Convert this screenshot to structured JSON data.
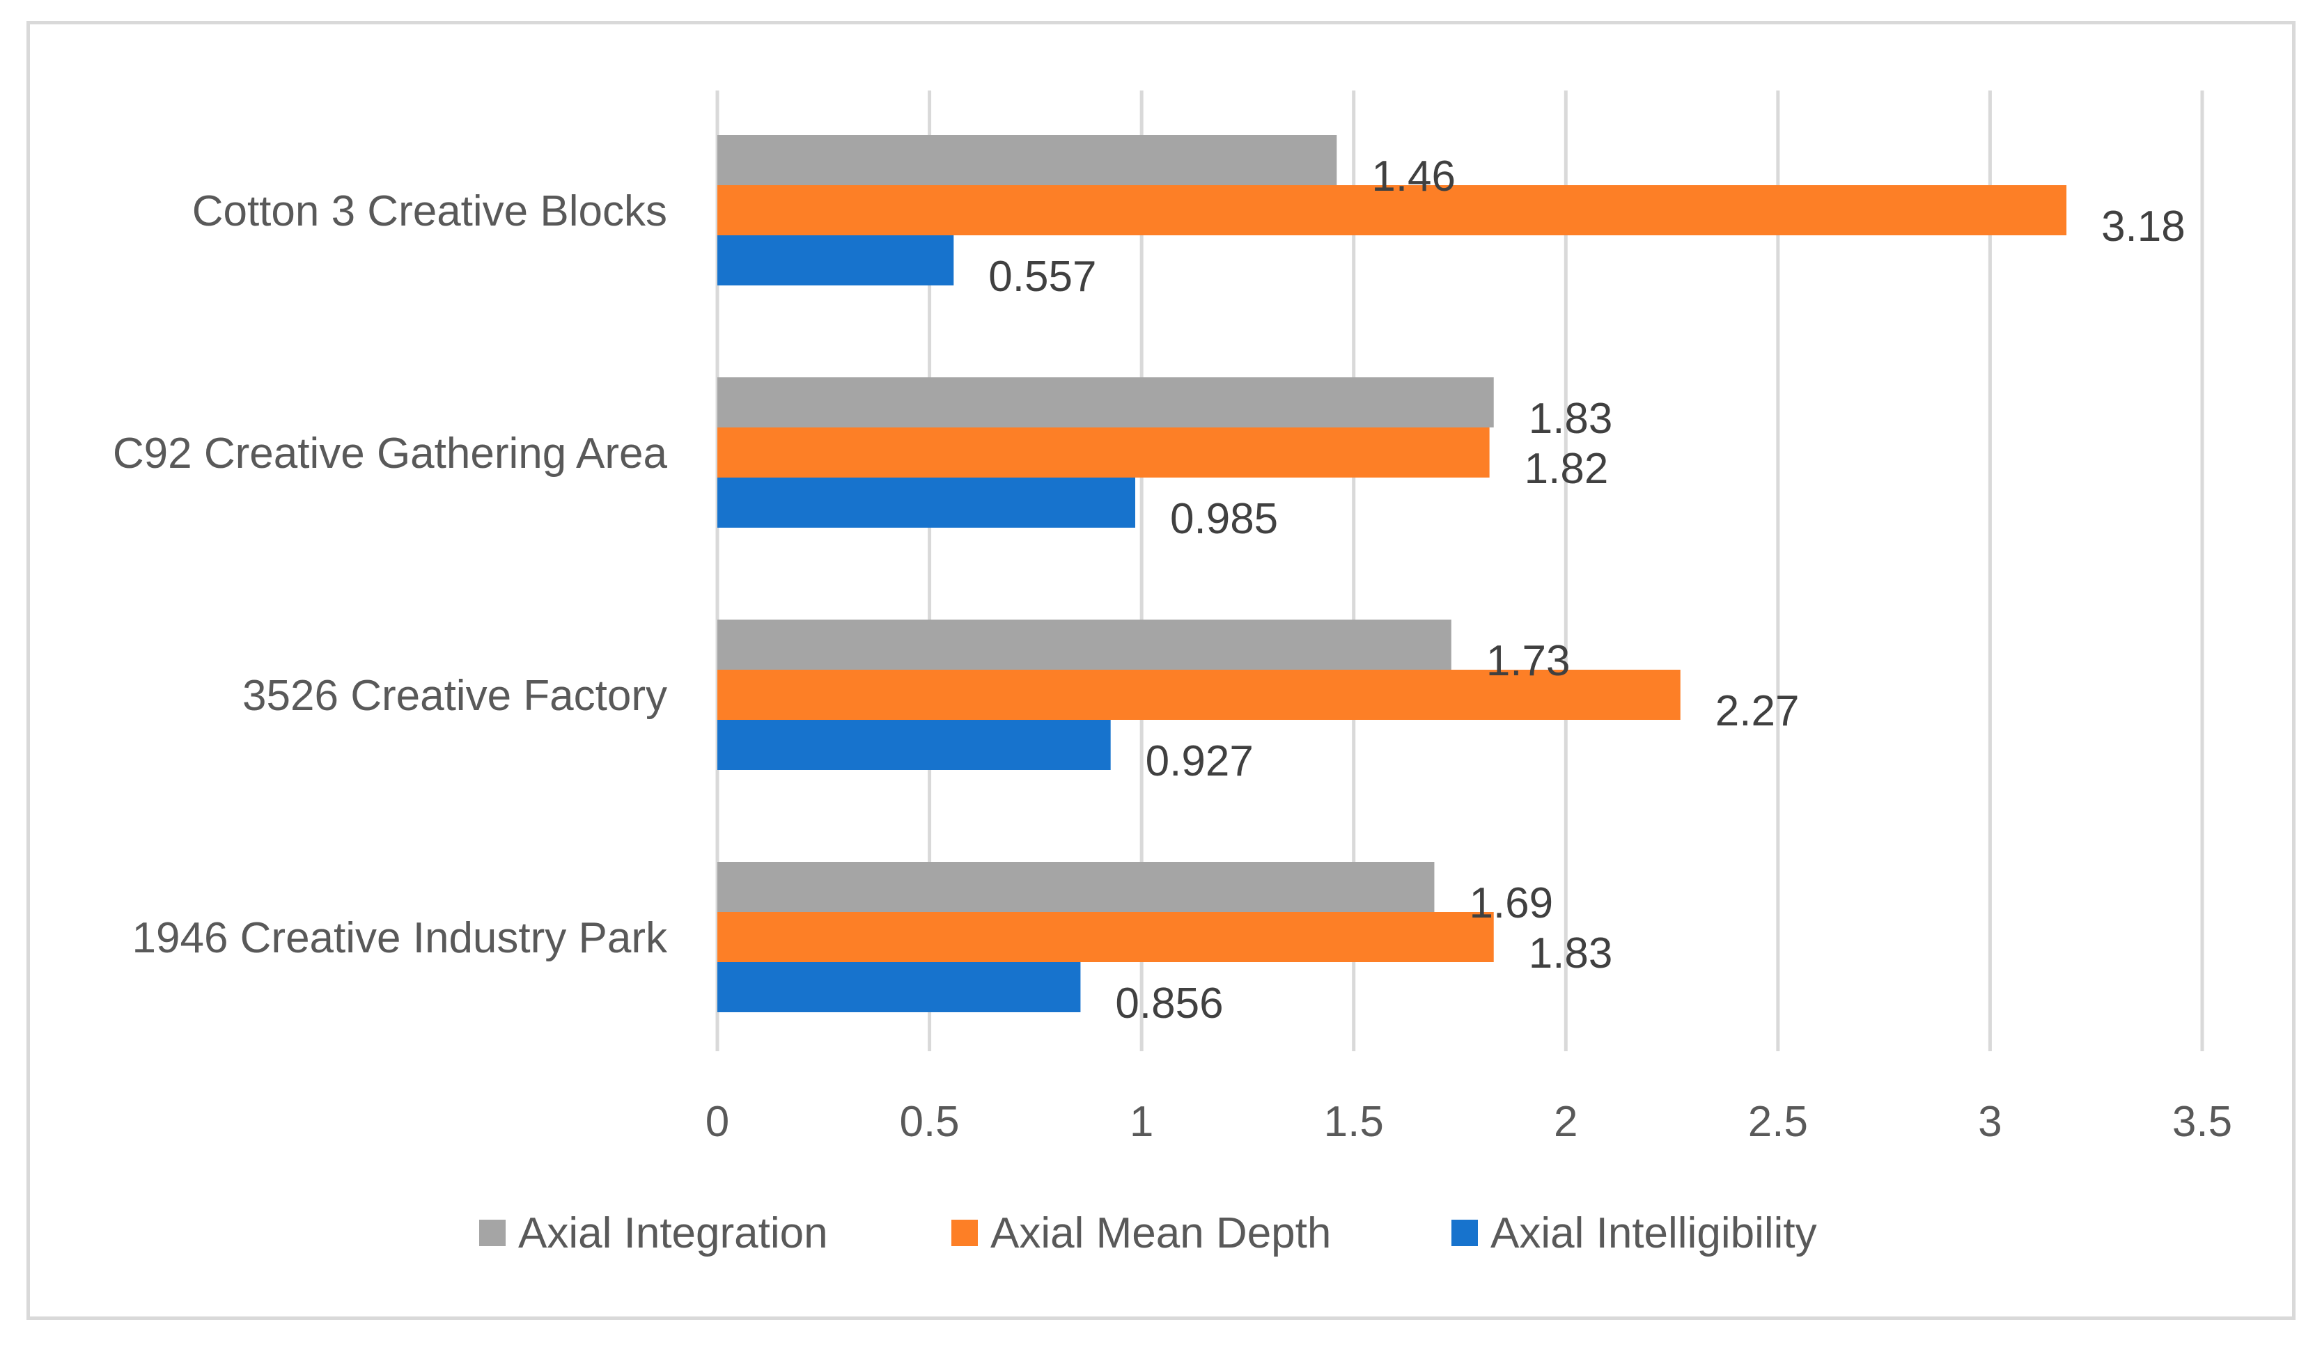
{
  "chart_data": {
    "type": "bar",
    "orientation": "horizontal",
    "title": "",
    "xlabel": "",
    "ylabel": "",
    "categories": [
      "1946 Creative Industry Park",
      "3526 Creative Factory",
      "C92 Creative Gathering Area",
      "Cotton 3 Creative Blocks"
    ],
    "series": [
      {
        "name": "Axial Integration",
        "color": "#a5a5a5",
        "values": [
          1.69,
          1.73,
          1.83,
          1.46
        ],
        "labels": [
          "1.69",
          "1.73",
          "1.83",
          "1.46"
        ]
      },
      {
        "name": "Axial Mean Depth",
        "color": "#fd7f26",
        "values": [
          1.83,
          2.27,
          1.82,
          3.18
        ],
        "labels": [
          "1.83",
          "2.27",
          "1.82",
          "3.18"
        ]
      },
      {
        "name": "Axial Intelligibility",
        "color": "#1773cd",
        "values": [
          0.856,
          0.927,
          0.985,
          0.557
        ],
        "labels": [
          "0.856",
          "0.927",
          "0.985",
          "0.557"
        ]
      }
    ],
    "xlim": [
      0,
      3.5
    ],
    "xticks": [
      "0",
      "0.5",
      "1",
      "1.5",
      "2",
      "2.5",
      "3",
      "3.5"
    ],
    "grid": true,
    "legend_position": "bottom"
  }
}
